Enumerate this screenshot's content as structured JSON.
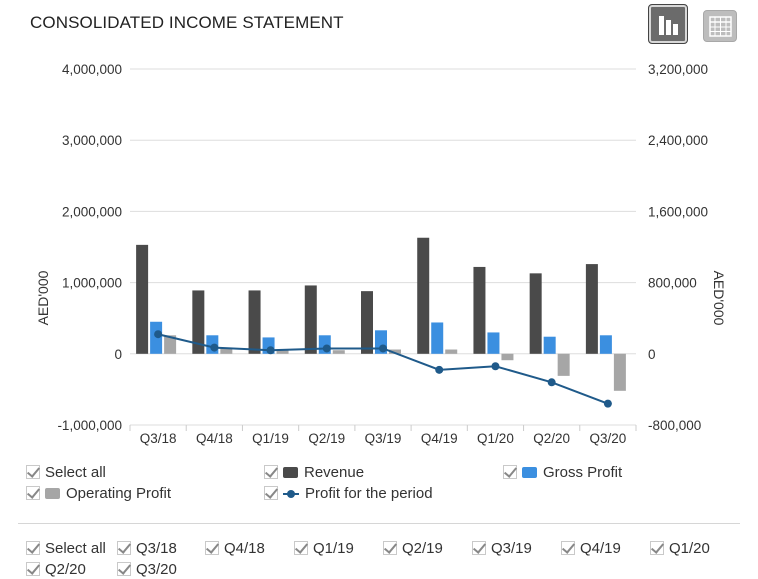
{
  "title": "CONSOLIDATED INCOME STATEMENT",
  "view_buttons": {
    "chart_icon": "bar-chart-icon",
    "table_icon": "table-grid-icon"
  },
  "colors": {
    "revenue": "#4a4a4a",
    "gross_profit": "#3b8fe0",
    "operating_profit": "#a6a6a6",
    "profit_line": "#1f5a8a",
    "grid": "#dddddd"
  },
  "chart_data": {
    "type": "bar",
    "categories": [
      "Q3/18",
      "Q4/18",
      "Q1/19",
      "Q2/19",
      "Q3/19",
      "Q4/19",
      "Q1/20",
      "Q2/20",
      "Q3/20"
    ],
    "left_axis": {
      "label": "AED'000",
      "range": [
        -1000000,
        4000000
      ],
      "ticks": [
        "4,000,000",
        "3,000,000",
        "2,000,000",
        "1,000,000",
        "0",
        "-1,000,000"
      ]
    },
    "right_axis": {
      "label": "AED'000",
      "range": [
        -800000,
        3200000
      ],
      "ticks": [
        "3,200,000",
        "2,400,000",
        "1,600,000",
        "800,000",
        "0",
        "-800,000"
      ]
    },
    "grid": true,
    "series": [
      {
        "name": "Revenue",
        "type": "bar",
        "axis": "left",
        "values": [
          1530000,
          890000,
          890000,
          960000,
          880000,
          1630000,
          1220000,
          1130000,
          1260000
        ]
      },
      {
        "name": "Gross Profit",
        "type": "bar",
        "axis": "left",
        "values": [
          450000,
          260000,
          230000,
          260000,
          330000,
          440000,
          300000,
          240000,
          260000
        ]
      },
      {
        "name": "Operating Profit",
        "type": "bar",
        "axis": "left",
        "values": [
          260000,
          80000,
          50000,
          50000,
          60000,
          60000,
          -90000,
          -310000,
          -520000
        ]
      },
      {
        "name": "Profit for the period",
        "type": "line",
        "axis": "right",
        "values": [
          220000,
          70000,
          40000,
          60000,
          60000,
          -180000,
          -140000,
          -320000,
          -560000
        ]
      }
    ]
  },
  "legend": {
    "select_all": "Select all",
    "items": [
      "Revenue",
      "Gross Profit",
      "Operating Profit",
      "Profit for the period"
    ]
  },
  "filters": {
    "select_all": "Select all",
    "periods": [
      "Q3/18",
      "Q4/18",
      "Q1/19",
      "Q2/19",
      "Q3/19",
      "Q4/19",
      "Q1/20",
      "Q2/20",
      "Q3/20"
    ]
  }
}
